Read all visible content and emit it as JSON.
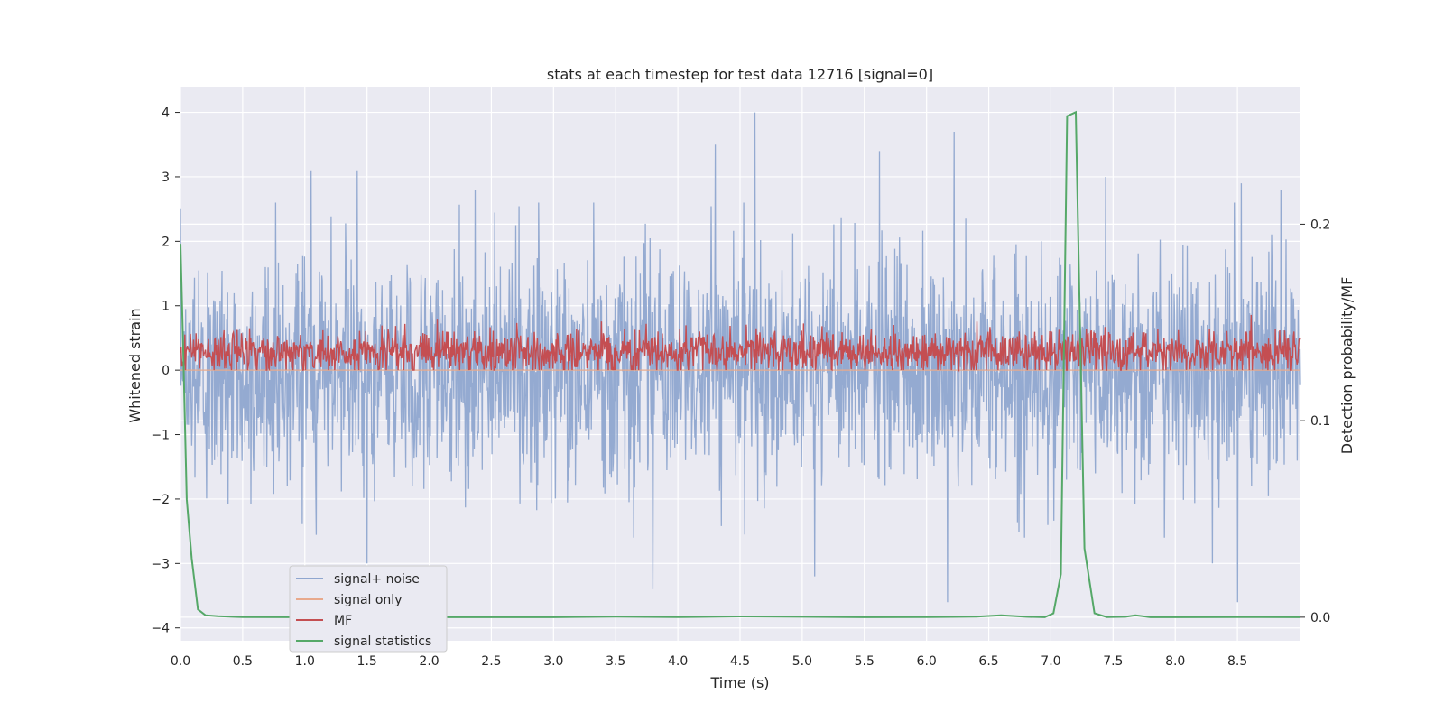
{
  "chart_data": {
    "type": "line",
    "title": "stats at each timestep for test data 12716 [signal=0]",
    "xlabel": "Time (s)",
    "ylabel": "Whitened strain",
    "y2label": "Detection probability/MF",
    "xlim": [
      0.0,
      9.0
    ],
    "ylim": [
      -4.2,
      4.4
    ],
    "y2lim": [
      -0.012,
      0.27
    ],
    "xticks": [
      "0.0",
      "0.5",
      "1.0",
      "1.5",
      "2.0",
      "2.5",
      "3.0",
      "3.5",
      "4.0",
      "4.5",
      "5.0",
      "5.5",
      "6.0",
      "6.5",
      "7.0",
      "7.5",
      "8.0",
      "8.5"
    ],
    "yticks": [
      "4",
      "3",
      "2",
      "1",
      "0",
      "−1",
      "−2",
      "−3",
      "−4"
    ],
    "y2ticks": [
      "0.2",
      "0.1",
      "0.0"
    ],
    "grid": true,
    "legend_position": "lower-left",
    "legend": [
      "signal+ noise",
      "signal only",
      "MF",
      "signal statistics"
    ],
    "colors": {
      "signal_noise": "#8fa6cf",
      "signal_only": "#e8a98c",
      "mf": "#c44e52",
      "signal_statistics": "#55a868",
      "plot_bg": "#eaeaf2",
      "grid": "#ffffff"
    },
    "series": [
      {
        "name": "signal+ noise",
        "description_values": "noise envelope approx -2.0 to 2.0, peaks to 4.0",
        "envelope": [
          -2.0,
          2.0
        ],
        "peaks": [
          [
            0.0,
            2.5
          ],
          [
            1.05,
            3.1
          ],
          [
            1.42,
            3.1
          ],
          [
            1.5,
            2.9
          ],
          [
            2.37,
            2.8
          ],
          [
            4.3,
            3.5
          ],
          [
            4.62,
            4.0
          ],
          [
            5.62,
            3.4
          ],
          [
            6.22,
            3.7
          ],
          [
            7.44,
            3.0
          ],
          [
            8.53,
            2.9
          ],
          [
            8.85,
            2.8
          ],
          [
            1.5,
            -3.0
          ],
          [
            3.8,
            -3.4
          ],
          [
            5.1,
            -3.2
          ],
          [
            6.17,
            -3.6
          ],
          [
            8.5,
            -3.6
          ],
          [
            8.3,
            -3.0
          ]
        ]
      },
      {
        "name": "signal only",
        "x": [
          0.0,
          9.0
        ],
        "values": [
          0.0,
          0.0
        ]
      },
      {
        "name": "MF",
        "description_values": "positive band roughly 0.0 to 0.8",
        "envelope": [
          0.0,
          0.8
        ]
      },
      {
        "name": "signal statistics",
        "x": [
          0.0,
          0.02,
          0.05,
          0.09,
          0.14,
          0.2,
          0.3,
          0.5,
          1.0,
          2.0,
          3.0,
          3.5,
          4.0,
          4.5,
          5.0,
          5.5,
          6.0,
          6.4,
          6.6,
          6.8,
          6.95,
          7.02,
          7.08,
          7.13,
          7.2,
          7.27,
          7.35,
          7.45,
          7.6,
          7.68,
          7.8,
          8.0,
          8.5,
          9.0
        ],
        "values": [
          0.19,
          0.14,
          0.06,
          0.03,
          0.004,
          0.001,
          0.0005,
          0.0001,
          0.0,
          0.0,
          0.0,
          0.0003,
          0.0001,
          0.0004,
          0.0002,
          0.0,
          0.0001,
          0.0003,
          0.001,
          0.0002,
          0.0,
          0.002,
          0.022,
          0.255,
          0.257,
          0.035,
          0.002,
          0.0001,
          0.0002,
          0.001,
          0.0,
          0.0,
          0.0001,
          0.0
        ]
      }
    ]
  }
}
